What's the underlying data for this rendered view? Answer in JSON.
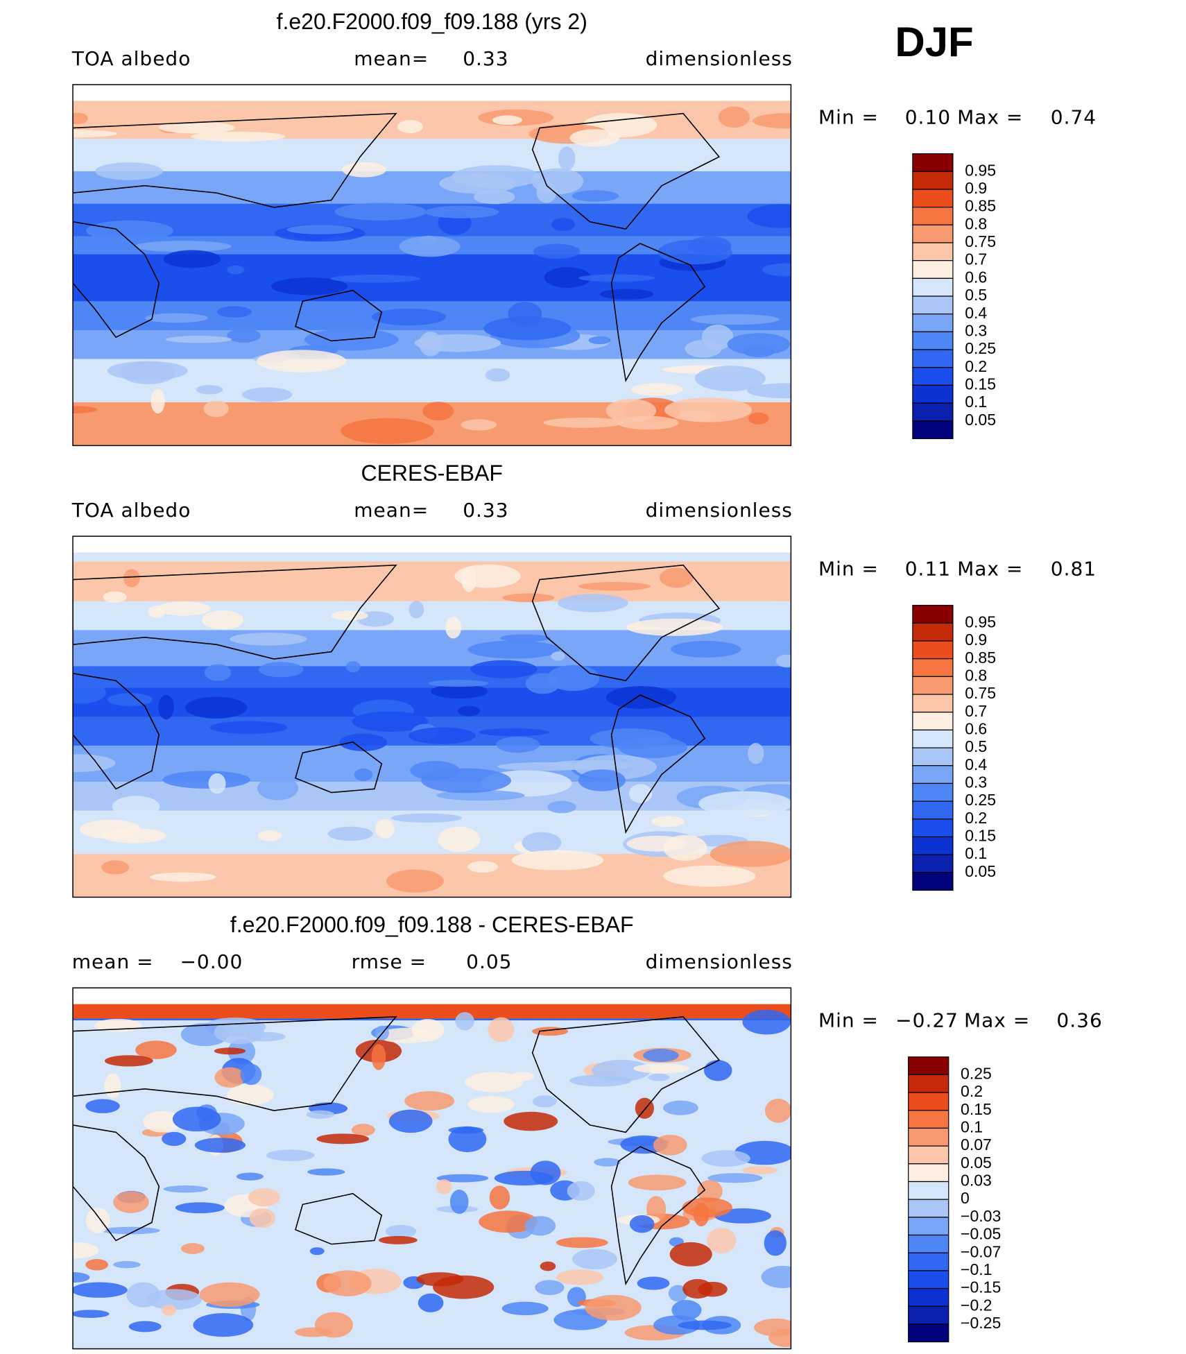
{
  "season": "DJF",
  "panels": [
    {
      "title": "f.e20.F2000.f09_f09.188 (yrs 2)",
      "header": [
        "TOA albedo",
        "mean=",
        "0.33",
        "dimensionless"
      ],
      "stats": [
        "Min =",
        "0.10",
        "Max =",
        "0.74"
      ],
      "colorbar": {
        "labels": [
          "0.95",
          "0.9",
          "0.85",
          "0.8",
          "0.75",
          "0.7",
          "0.6",
          "0.5",
          "0.4",
          "0.3",
          "0.25",
          "0.2",
          "0.15",
          "0.1",
          "0.05"
        ],
        "colors": [
          "#8a0000",
          "#c42a08",
          "#ec4d1c",
          "#f6743f",
          "#f89a70",
          "#fbc6aa",
          "#fdeee2",
          "#d6e6fa",
          "#a9c6f6",
          "#79a6f6",
          "#4f86f6",
          "#3068f2",
          "#1a4fee",
          "#0c33d2",
          "#0a20ae",
          "#02027d"
        ]
      }
    },
    {
      "title": "CERES-EBAF",
      "header": [
        "TOA albedo",
        "mean=",
        "0.33",
        "dimensionless"
      ],
      "stats": [
        "Min =",
        "0.11",
        "Max =",
        "0.81"
      ],
      "colorbar": {
        "labels": [
          "0.95",
          "0.9",
          "0.85",
          "0.8",
          "0.75",
          "0.7",
          "0.6",
          "0.5",
          "0.4",
          "0.3",
          "0.25",
          "0.2",
          "0.15",
          "0.1",
          "0.05"
        ],
        "colors": [
          "#8a0000",
          "#c42a08",
          "#ec4d1c",
          "#f6743f",
          "#f89a70",
          "#fbc6aa",
          "#fdeee2",
          "#d6e6fa",
          "#a9c6f6",
          "#79a6f6",
          "#4f86f6",
          "#3068f2",
          "#1a4fee",
          "#0c33d2",
          "#0a20ae",
          "#02027d"
        ]
      }
    },
    {
      "title": "f.e20.F2000.f09_f09.188 - CERES-EBAF",
      "header": [
        "mean =",
        "−0.00",
        "rmse =",
        "0.05",
        "dimensionless"
      ],
      "stats": [
        "Min =",
        "−0.27",
        "Max =",
        "0.36"
      ],
      "colorbar": {
        "labels": [
          "0.25",
          "0.2",
          "0.15",
          "0.1",
          "0.07",
          "0.05",
          "0.03",
          "0",
          "−0.03",
          "−0.05",
          "−0.07",
          "−0.1",
          "−0.15",
          "−0.2",
          "−0.25"
        ],
        "colors": [
          "#8a0000",
          "#c42a08",
          "#ec4d1c",
          "#f6743f",
          "#f89a70",
          "#fbc6aa",
          "#fdeee2",
          "#d6e6fa",
          "#a9c6f6",
          "#79a6f6",
          "#4f86f6",
          "#3068f2",
          "#1a4fee",
          "#0c33d2",
          "#0a20ae",
          "#02027d"
        ]
      }
    }
  ]
}
